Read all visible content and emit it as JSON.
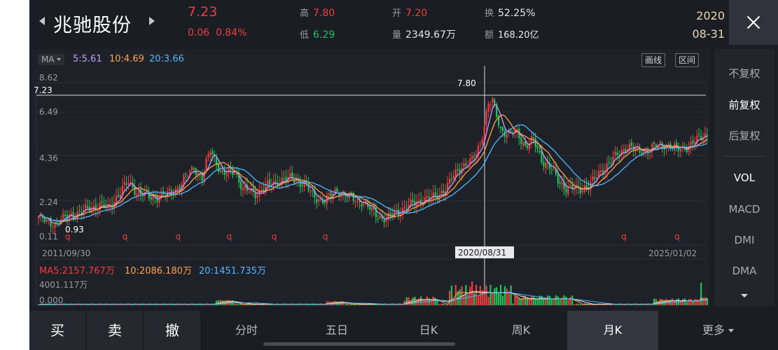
{
  "header": {
    "stock_name": "兆驰股份",
    "price": "7.23",
    "change": "0.06",
    "change_pct": "0.84%",
    "high_label": "高",
    "high": "7.80",
    "low_label": "低",
    "low": "6.29",
    "open_label": "开",
    "open": "7.20",
    "volume_label": "量",
    "volume": "2349.67万",
    "turnover_label": "换",
    "turnover": "52.25%",
    "amount_label": "额",
    "amount": "168.20亿",
    "date_year": "2020",
    "date_md": "08-31"
  },
  "chart": {
    "ma_selector": "MA",
    "ma5": "5:5.61",
    "ma10": "10:4.69",
    "ma20": "20:3.66",
    "draw_line_btn": "画线",
    "range_btn": "区间",
    "y_ticks": [
      "8.62",
      "6.49",
      "4.36",
      "2.24",
      "0.11"
    ],
    "last_price_label": "7.23",
    "crosshair_high_label": "7.80",
    "min_label": "0.93",
    "dividend_marker": "q",
    "x_start": "2011/09/30",
    "x_cross": "2020/08/31",
    "x_end": "2025/01/02",
    "vol_ma5": "MA5:2157.767万",
    "vol_ma10": "10:2086.180万",
    "vol_ma20": "20:1451.735万",
    "vol_max": "4001.117万",
    "vol_zero": "0.000"
  },
  "colors": {
    "up": "#ef3d3d",
    "down": "#22c25a",
    "ma5": "#c79bff",
    "ma10": "#ffa24b",
    "ma20": "#4fb8ff",
    "background": "#1b1d24"
  },
  "chart_data": {
    "type": "candlestick",
    "frequency": "monthly",
    "x_range": [
      "2011/09/30",
      "2025/01/02"
    ],
    "y_ticks": [
      8.62,
      6.49,
      4.36,
      2.24,
      0.11
    ],
    "ylim": [
      0.11,
      8.62
    ],
    "volume_ylim": [
      0,
      4001.117
    ],
    "volume_unit": "万",
    "min_marker": 0.93,
    "max_marker": 7.8,
    "last_price": 7.23,
    "selected_date": "2020/08/31",
    "ma": {
      "ma5": 5.61,
      "ma10": 4.69,
      "ma20": 3.66
    },
    "volume_ma": {
      "ma5": 2157.767,
      "ma10": 2086.18,
      "ma20": 1451.735
    },
    "price_path": [
      [
        0,
        1.6
      ],
      [
        4,
        1.3
      ],
      [
        8,
        1.25
      ],
      [
        14,
        1.6
      ],
      [
        22,
        1.9
      ],
      [
        30,
        2.2
      ],
      [
        34,
        2.0
      ],
      [
        40,
        2.9
      ],
      [
        44,
        3.4
      ],
      [
        48,
        2.9
      ],
      [
        54,
        2.6
      ],
      [
        62,
        2.7
      ],
      [
        68,
        3.1
      ],
      [
        76,
        4.2
      ],
      [
        80,
        3.6
      ],
      [
        84,
        5.1
      ],
      [
        90,
        3.8
      ],
      [
        96,
        4.0
      ],
      [
        100,
        3.0
      ],
      [
        106,
        2.8
      ],
      [
        112,
        3.2
      ],
      [
        118,
        3.5
      ],
      [
        124,
        3.6
      ],
      [
        130,
        3.3
      ],
      [
        134,
        2.7
      ],
      [
        140,
        2.4
      ],
      [
        146,
        3.0
      ],
      [
        152,
        2.6
      ],
      [
        158,
        2.4
      ],
      [
        162,
        2.0
      ],
      [
        166,
        1.65
      ],
      [
        170,
        1.45
      ],
      [
        176,
        1.9
      ],
      [
        182,
        2.2
      ],
      [
        188,
        2.5
      ],
      [
        194,
        2.6
      ],
      [
        200,
        3.2
      ],
      [
        206,
        4.2
      ],
      [
        212,
        4.5
      ],
      [
        216,
        5.4
      ],
      [
        220,
        7.5
      ],
      [
        222,
        7.6
      ],
      [
        226,
        6.2
      ],
      [
        230,
        5.9
      ],
      [
        234,
        6.0
      ],
      [
        238,
        5.3
      ],
      [
        242,
        5.6
      ],
      [
        246,
        4.6
      ],
      [
        250,
        4.2
      ],
      [
        254,
        3.5
      ],
      [
        258,
        3.1
      ],
      [
        264,
        3.0
      ],
      [
        270,
        3.3
      ],
      [
        276,
        4.1
      ],
      [
        282,
        4.7
      ],
      [
        288,
        5.3
      ],
      [
        294,
        5.0
      ],
      [
        300,
        5.2
      ],
      [
        306,
        5.4
      ],
      [
        312,
        5.1
      ],
      [
        318,
        5.3
      ],
      [
        322,
        5.6
      ],
      [
        326,
        5.9
      ]
    ]
  },
  "sidebar": {
    "items": [
      {
        "label": "不复权",
        "active": false
      },
      {
        "label": "前复权",
        "active": true
      },
      {
        "label": "后复权",
        "active": false
      },
      {
        "label": "VOL",
        "active": true
      },
      {
        "label": "MACD",
        "active": false
      },
      {
        "label": "DMI",
        "active": false
      },
      {
        "label": "DMA",
        "active": false
      }
    ]
  },
  "trade": {
    "buy": "买",
    "sell": "卖",
    "cancel": "撤"
  },
  "periods": [
    {
      "label": "分时",
      "active": false
    },
    {
      "label": "五日",
      "active": false
    },
    {
      "label": "日K",
      "active": false
    },
    {
      "label": "周K",
      "active": false
    },
    {
      "label": "月K",
      "active": true
    },
    {
      "label": "更多",
      "active": false
    }
  ]
}
